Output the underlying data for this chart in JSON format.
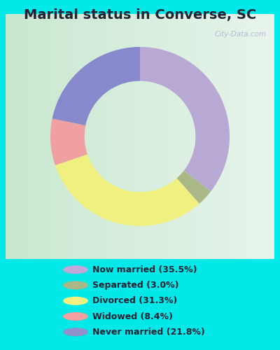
{
  "title": "Marital status in Converse, SC",
  "slices": [
    35.5,
    3.0,
    31.3,
    8.4,
    21.8
  ],
  "labels": [
    "Now married (35.5%)",
    "Separated (3.0%)",
    "Divorced (31.3%)",
    "Widowed (8.4%)",
    "Never married (21.8%)"
  ],
  "colors": [
    "#b8a8d4",
    "#aab888",
    "#f0f080",
    "#f0a0a0",
    "#8888cc"
  ],
  "legend_colors": [
    "#c0a8d8",
    "#aab888",
    "#f5f080",
    "#f5a0a0",
    "#9090cc"
  ],
  "bg_outer": "#00e8e8",
  "bg_chart_left": "#c8e8d0",
  "bg_chart_right": "#e8f4ec",
  "title_fontsize": 14,
  "watermark": "City-Data.com",
  "donut_width": 0.38
}
